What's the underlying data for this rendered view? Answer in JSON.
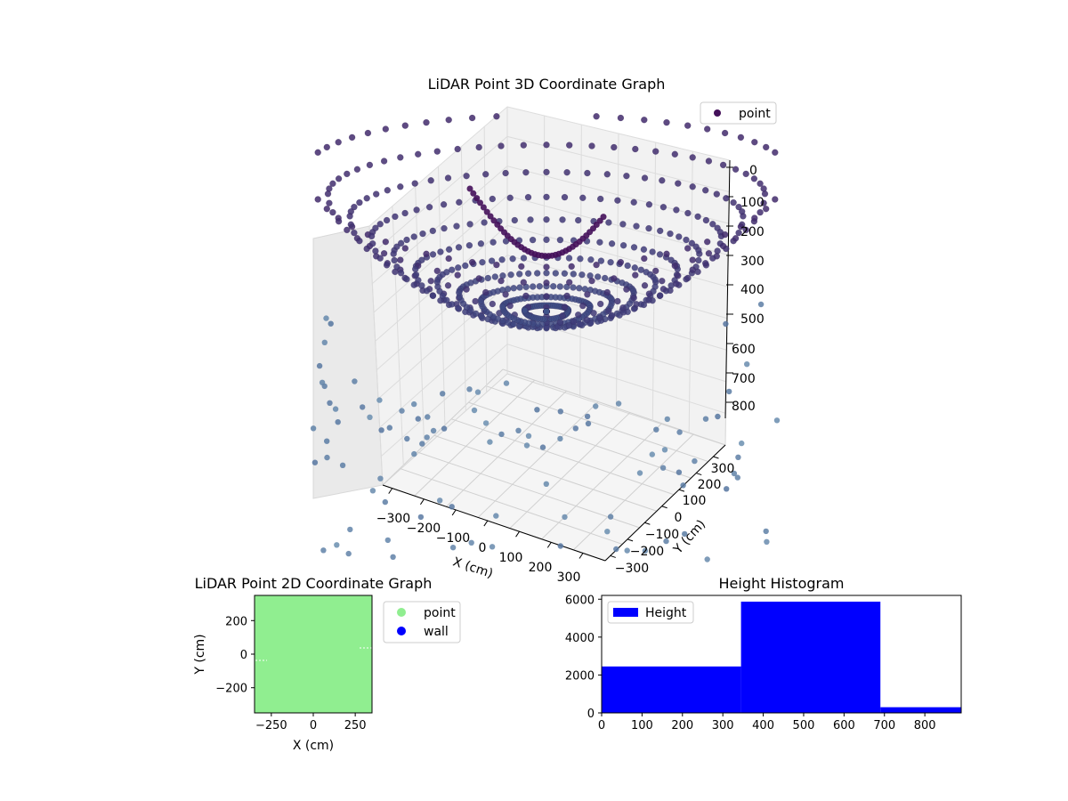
{
  "chart_data": [
    {
      "type": "scatter",
      "subtype": "3d",
      "title": "LiDAR Point 3D Coordinate Graph",
      "xlabel": "X (cm)",
      "ylabel": "Y (cm)",
      "zlabel": "",
      "x_ticks": [
        "−300",
        "−200",
        "−100",
        "0",
        "100",
        "200",
        "300"
      ],
      "y_ticks": [
        "−300",
        "−200",
        "−100",
        "0",
        "100",
        "200",
        "300"
      ],
      "z_ticks": [
        "0",
        "100",
        "200",
        "300",
        "400",
        "500",
        "600",
        "700",
        "800"
      ],
      "legend": [
        "point"
      ],
      "legend_position": "upper right",
      "colormap": "viridis",
      "point_color_dark": "#3f1b5e",
      "point_color_mid": "#3e5a8e",
      "point_color_light": "#6b8fb0"
    },
    {
      "type": "scatter",
      "title": "LiDAR Point 2D Coordinate Graph",
      "xlabel": "X (cm)",
      "ylabel": "Y (cm)",
      "xlim": [
        -350,
        350
      ],
      "ylim": [
        -350,
        350
      ],
      "x_ticks": [
        -250,
        0,
        250
      ],
      "y_ticks": [
        -200,
        0,
        200
      ],
      "x_tick_labels": [
        "−250",
        "0",
        "250"
      ],
      "y_tick_labels": [
        "−200",
        "0",
        "200"
      ],
      "series": [
        {
          "name": "point",
          "color": "#90ee90"
        },
        {
          "name": "wall",
          "color": "#0000ff"
        }
      ],
      "legend_position": "outside right"
    },
    {
      "type": "bar",
      "subtype": "histogram",
      "title": "Height Histogram",
      "xlim": [
        0,
        890
      ],
      "ylim": [
        0,
        6200
      ],
      "bins": [
        {
          "start": 0,
          "end": 345,
          "count": 2450
        },
        {
          "start": 345,
          "end": 690,
          "count": 5870
        },
        {
          "start": 690,
          "end": 890,
          "count": 300
        }
      ],
      "x_ticks": [
        0,
        100,
        200,
        300,
        400,
        500,
        600,
        700,
        800
      ],
      "y_ticks": [
        0,
        2000,
        4000,
        6000
      ],
      "x_tick_labels": [
        "0",
        "100",
        "200",
        "300",
        "400",
        "500",
        "600",
        "700",
        "800"
      ],
      "y_tick_labels": [
        "0",
        "2000",
        "4000",
        "6000"
      ],
      "legend": [
        "Height"
      ],
      "bar_color": "#0000ff",
      "legend_position": "upper left"
    }
  ]
}
